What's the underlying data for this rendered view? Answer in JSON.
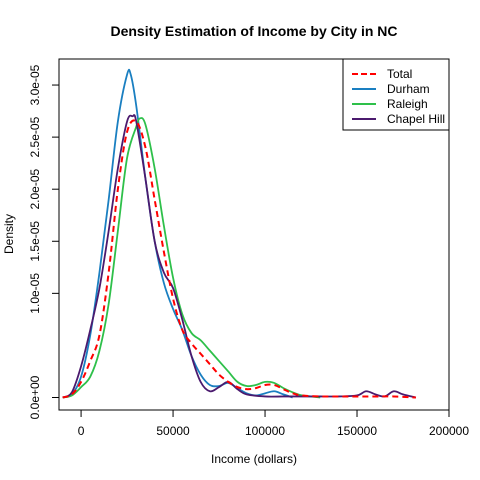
{
  "chart_data": {
    "type": "line",
    "title": "Density Estimation of Income by City in NC",
    "xlabel": "Income (dollars)",
    "ylabel": "Density",
    "xlim": [
      -12000,
      200000
    ],
    "ylim": [
      -1.2e-06,
      3.25e-05
    ],
    "xticks": [
      0,
      50000,
      100000,
      150000,
      200000
    ],
    "xtick_labels": [
      "0",
      "50000",
      "100000",
      "150000",
      "200000"
    ],
    "yticks": [
      0,
      1e-05,
      1.5e-05,
      2e-05,
      2.5e-05,
      3e-05
    ],
    "ytick_labels": [
      "0.0e+00",
      "1.0e-05",
      "1.5e-05",
      "2.0e-05",
      "2.5e-05",
      "3.0e-05"
    ],
    "grid": false,
    "legend_position": "top-right",
    "series": [
      {
        "name": "Total",
        "color": "#ff0000",
        "dash": "dashed",
        "x": [
          -10000,
          -5000,
          0,
          5000,
          10000,
          15000,
          20000,
          25000,
          30000,
          35000,
          40000,
          45000,
          50000,
          55000,
          60000,
          65000,
          70000,
          75000,
          80000,
          85000,
          90000,
          95000,
          100000,
          105000,
          110000,
          115000,
          120000,
          130000,
          140000,
          150000,
          160000,
          170000,
          182000
        ],
        "y": [
          0,
          3e-07,
          1.5e-06,
          3.5e-06,
          6e-06,
          1.2e-05,
          2e-05,
          2.55e-05,
          2.65e-05,
          2.4e-05,
          1.9e-05,
          1.4e-05,
          9.5e-06,
          6.5e-06,
          5.2e-06,
          4.2e-06,
          3.2e-06,
          2.2e-06,
          1.5e-06,
          1e-06,
          8e-07,
          9e-07,
          1.2e-06,
          1.2e-06,
          8e-07,
          4e-07,
          2e-07,
          1e-07,
          1e-07,
          1e-07,
          1e-07,
          1e-07,
          0
        ]
      },
      {
        "name": "Durham",
        "color": "#1a7fc1",
        "dash": "solid",
        "x": [
          -10000,
          -5000,
          0,
          5000,
          10000,
          15000,
          20000,
          25000,
          27000,
          30000,
          35000,
          40000,
          45000,
          50000,
          55000,
          60000,
          65000,
          70000,
          75000,
          80000,
          85000,
          90000,
          95000,
          100000,
          105000,
          110000,
          115000
        ],
        "y": [
          0,
          3e-07,
          2e-06,
          6e-06,
          1.2e-05,
          1.9e-05,
          2.65e-05,
          3.1e-05,
          3.1e-05,
          2.8e-05,
          2.1e-05,
          1.5e-05,
          1.1e-05,
          8.5e-06,
          6.5e-06,
          4e-06,
          2.2e-06,
          1.2e-06,
          1.1e-06,
          1.4e-06,
          9e-07,
          4e-07,
          2e-07,
          4e-07,
          6e-07,
          3e-07,
          0
        ]
      },
      {
        "name": "Raleigh",
        "color": "#2ec04a",
        "dash": "solid",
        "x": [
          -10000,
          -5000,
          0,
          5000,
          10000,
          15000,
          20000,
          25000,
          30000,
          32000,
          35000,
          40000,
          45000,
          50000,
          55000,
          60000,
          65000,
          70000,
          75000,
          80000,
          85000,
          90000,
          95000,
          100000,
          105000,
          110000,
          115000,
          120000,
          125000,
          130000
        ],
        "y": [
          0,
          2e-07,
          1e-06,
          2e-06,
          4.5e-06,
          9e-06,
          1.6e-05,
          2.3e-05,
          2.6e-05,
          2.68e-05,
          2.62e-05,
          2.2e-05,
          1.65e-05,
          1.15e-05,
          8e-06,
          6.2e-06,
          5.5e-06,
          4.5e-06,
          3.5e-06,
          2.5e-06,
          1.5e-06,
          1.1e-06,
          1.2e-06,
          1.5e-06,
          1.4e-06,
          9e-07,
          5e-07,
          2e-07,
          1e-07,
          0
        ]
      },
      {
        "name": "Chapel Hill",
        "color": "#4b1a6e",
        "dash": "solid",
        "x": [
          -10000,
          -5000,
          0,
          5000,
          10000,
          15000,
          20000,
          25000,
          28000,
          30000,
          35000,
          40000,
          45000,
          50000,
          55000,
          60000,
          65000,
          70000,
          75000,
          80000,
          85000,
          90000,
          100000,
          110000,
          120000,
          130000,
          140000,
          150000,
          155000,
          160000,
          165000,
          170000,
          175000,
          182000
        ],
        "y": [
          0,
          5e-07,
          3e-06,
          6.5e-06,
          1.05e-05,
          1.6e-05,
          2.2e-05,
          2.65e-05,
          2.7e-05,
          2.65e-05,
          2.1e-05,
          1.5e-05,
          1.2e-05,
          1.05e-05,
          7.5e-06,
          4e-06,
          1.5e-06,
          6e-07,
          1e-06,
          1.5e-06,
          8e-07,
          3e-07,
          1e-07,
          1e-07,
          1e-07,
          1e-07,
          1e-07,
          2e-07,
          6e-07,
          3e-07,
          1e-07,
          6e-07,
          3e-07,
          0
        ]
      }
    ]
  }
}
